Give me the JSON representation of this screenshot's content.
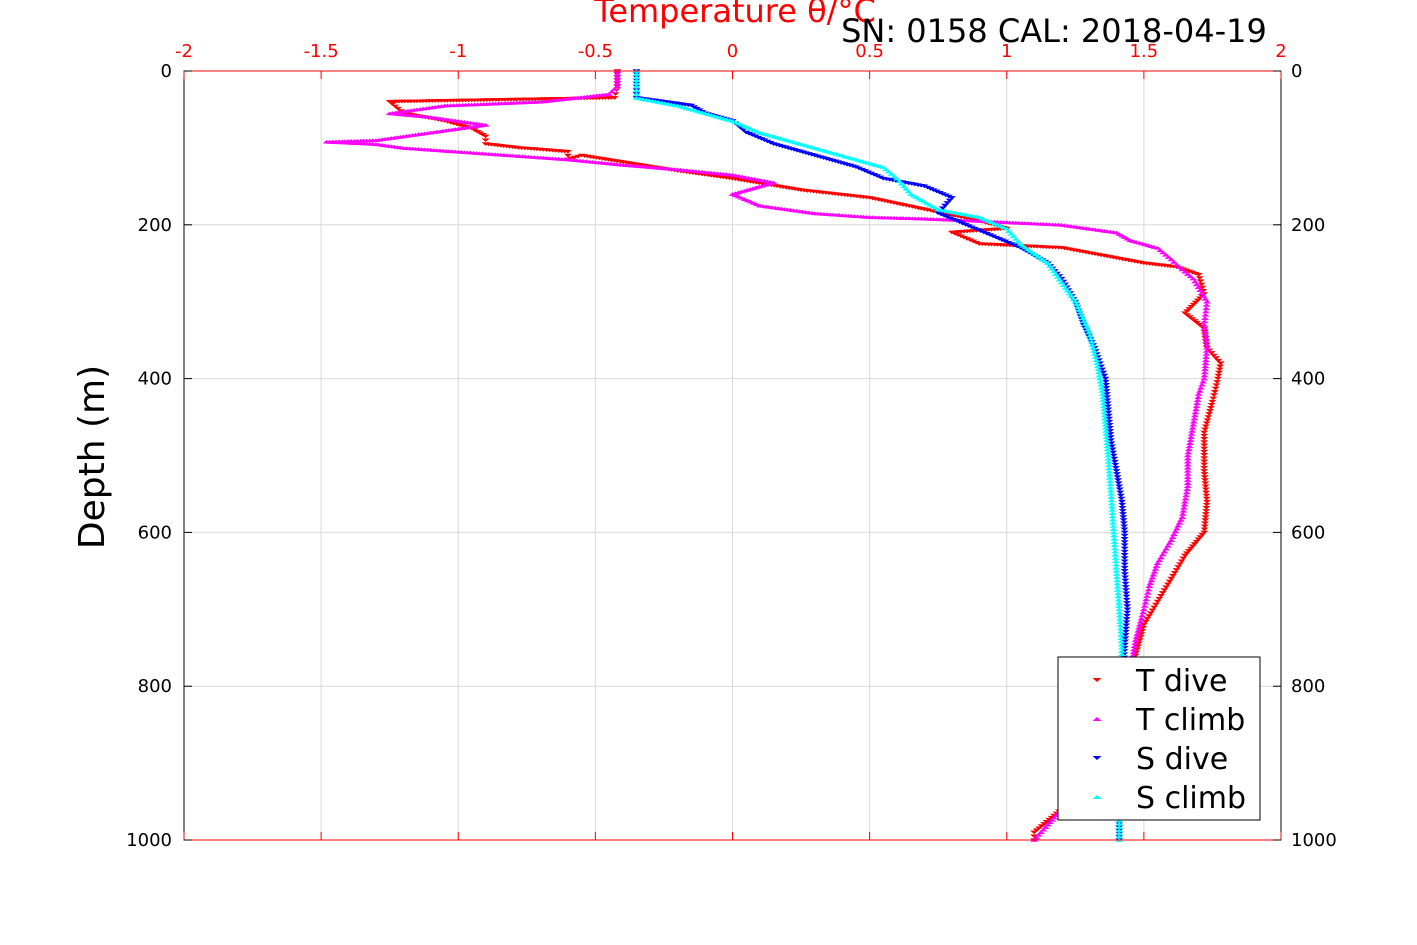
{
  "chart_data": {
    "type": "scatter",
    "title": "SN: 0158  CAL: 2018-04-19",
    "xlabel": "Temperature θ/°C",
    "ylabel": "Depth (m)",
    "xlim": [
      -2,
      2
    ],
    "ylim": [
      0,
      1000
    ],
    "y_reversed": true,
    "x_axis_position": "top",
    "grid": true,
    "legend_placement": "bottom-right",
    "x_ticks": [
      "-2",
      "-1.5",
      "-1",
      "-0.5",
      "0",
      "0.5",
      "1",
      "1.5",
      "2"
    ],
    "y_ticks": [
      "0",
      "200",
      "400",
      "600",
      "800",
      "1000"
    ],
    "colors": {
      "x_axis": "#ff0000",
      "y_axis": "#000000",
      "grid": "#d9d9d9",
      "T_dive": "#ff0000",
      "T_climb": "#ff00ff",
      "S_dive": "#0000ff",
      "S_climb": "#00ffff"
    },
    "series": [
      {
        "name": "T dive",
        "marker": "triangle-down",
        "color": "#ff0000",
        "points": [
          [
            -0.42,
            0
          ],
          [
            -0.42,
            20
          ],
          [
            -0.43,
            35
          ],
          [
            -1.25,
            40
          ],
          [
            -1.2,
            55
          ],
          [
            -1.05,
            65
          ],
          [
            -0.95,
            75
          ],
          [
            -0.9,
            85
          ],
          [
            -0.9,
            95
          ],
          [
            -0.78,
            100
          ],
          [
            -0.6,
            105
          ],
          [
            -0.6,
            115
          ],
          [
            -0.55,
            110
          ],
          [
            -0.2,
            130
          ],
          [
            0.0,
            140
          ],
          [
            0.25,
            155
          ],
          [
            0.5,
            165
          ],
          [
            0.7,
            180
          ],
          [
            0.9,
            195
          ],
          [
            1.0,
            205
          ],
          [
            0.8,
            210
          ],
          [
            0.9,
            225
          ],
          [
            1.2,
            230
          ],
          [
            1.5,
            250
          ],
          [
            1.62,
            255
          ],
          [
            1.7,
            265
          ],
          [
            1.72,
            290
          ],
          [
            1.65,
            315
          ],
          [
            1.72,
            335
          ],
          [
            1.73,
            360
          ],
          [
            1.78,
            380
          ],
          [
            1.77,
            400
          ],
          [
            1.75,
            430
          ],
          [
            1.72,
            470
          ],
          [
            1.72,
            520
          ],
          [
            1.73,
            560
          ],
          [
            1.72,
            600
          ],
          [
            1.65,
            630
          ],
          [
            1.6,
            660
          ],
          [
            1.55,
            690
          ],
          [
            1.5,
            720
          ],
          [
            1.47,
            760
          ],
          [
            1.45,
            800
          ],
          [
            1.42,
            850
          ],
          [
            1.4,
            900
          ],
          [
            1.3,
            930
          ],
          [
            1.2,
            960
          ],
          [
            1.1,
            990
          ],
          [
            1.1,
            1000
          ]
        ]
      },
      {
        "name": "T climb",
        "marker": "triangle-up",
        "color": "#ff00ff",
        "points": [
          [
            -0.42,
            0
          ],
          [
            -0.42,
            20
          ],
          [
            -0.45,
            30
          ],
          [
            -0.7,
            40
          ],
          [
            -1.05,
            45
          ],
          [
            -1.25,
            55
          ],
          [
            -1.1,
            60
          ],
          [
            -0.9,
            70
          ],
          [
            -1.1,
            80
          ],
          [
            -1.3,
            90
          ],
          [
            -1.48,
            92
          ],
          [
            -1.3,
            95
          ],
          [
            -1.2,
            100
          ],
          [
            -1.0,
            105
          ],
          [
            -0.8,
            110
          ],
          [
            -0.6,
            115
          ],
          [
            -0.4,
            122
          ],
          [
            -0.2,
            128
          ],
          [
            0.0,
            135
          ],
          [
            0.15,
            145
          ],
          [
            0.0,
            160
          ],
          [
            0.1,
            175
          ],
          [
            0.3,
            185
          ],
          [
            0.5,
            190
          ],
          [
            0.7,
            192
          ],
          [
            0.9,
            195
          ],
          [
            1.2,
            200
          ],
          [
            1.4,
            210
          ],
          [
            1.45,
            220
          ],
          [
            1.55,
            230
          ],
          [
            1.6,
            245
          ],
          [
            1.63,
            255
          ],
          [
            1.68,
            270
          ],
          [
            1.73,
            300
          ],
          [
            1.72,
            330
          ],
          [
            1.73,
            360
          ],
          [
            1.72,
            400
          ],
          [
            1.7,
            420
          ],
          [
            1.68,
            460
          ],
          [
            1.66,
            500
          ],
          [
            1.66,
            540
          ],
          [
            1.64,
            580
          ],
          [
            1.6,
            610
          ],
          [
            1.55,
            640
          ],
          [
            1.52,
            670
          ],
          [
            1.5,
            700
          ],
          [
            1.47,
            740
          ],
          [
            1.45,
            780
          ],
          [
            1.42,
            820
          ],
          [
            1.4,
            860
          ],
          [
            1.38,
            900
          ],
          [
            1.25,
            940
          ],
          [
            1.15,
            980
          ],
          [
            1.1,
            1000
          ]
        ]
      },
      {
        "name": "S dive",
        "marker": "triangle-down",
        "color": "#0000ff",
        "points": [
          [
            -0.35,
            0
          ],
          [
            -0.35,
            20
          ],
          [
            -0.35,
            35
          ],
          [
            -0.15,
            45
          ],
          [
            -0.1,
            55
          ],
          [
            0.0,
            65
          ],
          [
            0.05,
            80
          ],
          [
            0.15,
            95
          ],
          [
            0.3,
            110
          ],
          [
            0.45,
            125
          ],
          [
            0.55,
            140
          ],
          [
            0.7,
            150
          ],
          [
            0.8,
            165
          ],
          [
            0.75,
            185
          ],
          [
            0.85,
            200
          ],
          [
            0.95,
            215
          ],
          [
            1.05,
            230
          ],
          [
            1.15,
            250
          ],
          [
            1.2,
            270
          ],
          [
            1.25,
            300
          ],
          [
            1.28,
            330
          ],
          [
            1.32,
            360
          ],
          [
            1.36,
            400
          ],
          [
            1.37,
            440
          ],
          [
            1.38,
            480
          ],
          [
            1.4,
            520
          ],
          [
            1.42,
            560
          ],
          [
            1.43,
            600
          ],
          [
            1.43,
            650
          ],
          [
            1.44,
            700
          ],
          [
            1.43,
            750
          ],
          [
            1.42,
            800
          ],
          [
            1.42,
            850
          ],
          [
            1.42,
            900
          ],
          [
            1.41,
            950
          ],
          [
            1.41,
            1000
          ]
        ]
      },
      {
        "name": "S climb",
        "marker": "triangle-up",
        "color": "#00ffff",
        "points": [
          [
            -0.35,
            0
          ],
          [
            -0.35,
            20
          ],
          [
            -0.35,
            35
          ],
          [
            -0.2,
            45
          ],
          [
            -0.1,
            55
          ],
          [
            0.0,
            65
          ],
          [
            0.1,
            80
          ],
          [
            0.25,
            95
          ],
          [
            0.4,
            110
          ],
          [
            0.55,
            125
          ],
          [
            0.6,
            140
          ],
          [
            0.65,
            160
          ],
          [
            0.75,
            180
          ],
          [
            0.9,
            190
          ],
          [
            1.0,
            205
          ],
          [
            1.05,
            225
          ],
          [
            1.15,
            250
          ],
          [
            1.2,
            275
          ],
          [
            1.25,
            300
          ],
          [
            1.3,
            340
          ],
          [
            1.33,
            380
          ],
          [
            1.35,
            420
          ],
          [
            1.36,
            460
          ],
          [
            1.37,
            500
          ],
          [
            1.38,
            550
          ],
          [
            1.39,
            600
          ],
          [
            1.4,
            650
          ],
          [
            1.41,
            700
          ],
          [
            1.42,
            750
          ],
          [
            1.42,
            800
          ],
          [
            1.42,
            850
          ],
          [
            1.41,
            900
          ],
          [
            1.41,
            950
          ],
          [
            1.41,
            1000
          ]
        ]
      }
    ]
  }
}
